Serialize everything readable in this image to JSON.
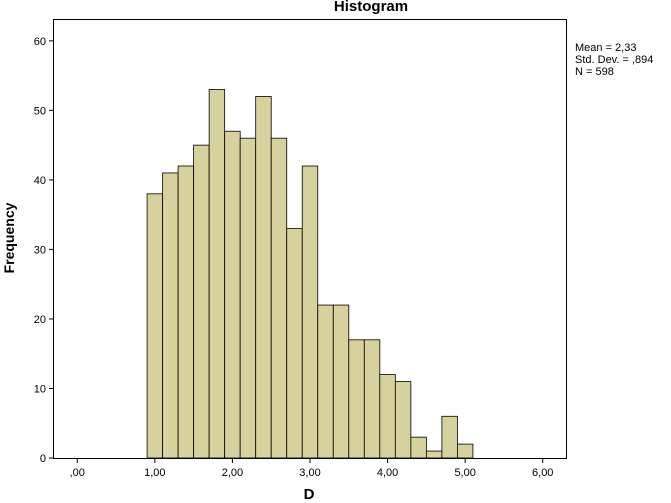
{
  "chart_data": {
    "type": "bar",
    "title": "Histogram",
    "xlabel": "D",
    "ylabel": "Frequency",
    "xlim": [
      -0.3,
      6.3
    ],
    "ylim": [
      0,
      63
    ],
    "x_ticks": [
      0,
      1,
      2,
      3,
      4,
      5,
      6
    ],
    "x_tick_labels": [
      ",00",
      "1,00",
      "2,00",
      "3,00",
      "4,00",
      "5,00",
      "6,00"
    ],
    "y_ticks": [
      0,
      10,
      20,
      30,
      40,
      50,
      60
    ],
    "y_tick_labels": [
      "0",
      "10",
      "20",
      "30",
      "40",
      "50",
      "60"
    ],
    "bin_width": 0.2,
    "bin_starts": [
      0.9,
      1.1,
      1.3,
      1.5,
      1.7,
      1.9,
      2.1,
      2.3,
      2.5,
      2.7,
      2.9,
      3.1,
      3.3,
      3.5,
      3.7,
      3.9,
      4.1,
      4.3,
      4.5,
      4.7,
      4.9
    ],
    "values": [
      38,
      41,
      42,
      45,
      53,
      47,
      46,
      52,
      46,
      33,
      42,
      22,
      22,
      17,
      17,
      12,
      11,
      3,
      1,
      6,
      2
    ],
    "bar_color": "#d7d29d",
    "stats": [
      "Mean = 2,33",
      "Std. Dev. = ,894",
      "N = 598"
    ],
    "grid": false
  }
}
